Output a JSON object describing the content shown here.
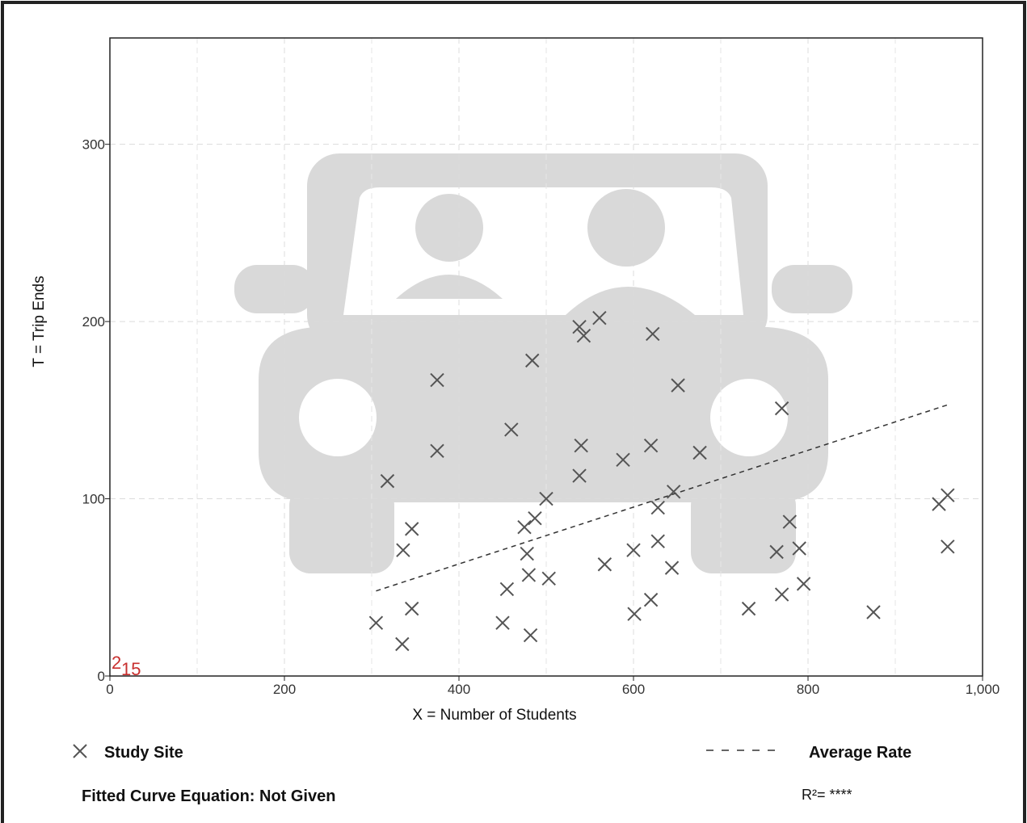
{
  "chart_data": {
    "type": "scatter",
    "xlabel": "X = Number of Students",
    "ylabel": "T = Trip Ends",
    "xlim": [
      0,
      1000
    ],
    "ylim": [
      0,
      360
    ],
    "x_ticks": [
      "0",
      "200",
      "400",
      "600",
      "800",
      "1,000"
    ],
    "y_ticks": [
      "0",
      "100",
      "200",
      "300"
    ],
    "grid": true,
    "series": [
      {
        "name": "Study Site",
        "marker": "x",
        "color": "#555555",
        "points": [
          [
            305,
            30
          ],
          [
            318,
            110
          ],
          [
            335,
            18
          ],
          [
            336,
            71
          ],
          [
            346,
            38
          ],
          [
            346,
            83
          ],
          [
            375,
            167
          ],
          [
            375,
            127
          ],
          [
            450,
            30
          ],
          [
            455,
            49
          ],
          [
            460,
            139
          ],
          [
            475,
            84
          ],
          [
            478,
            69
          ],
          [
            480,
            57
          ],
          [
            482,
            23
          ],
          [
            484,
            178
          ],
          [
            487,
            89
          ],
          [
            500,
            100
          ],
          [
            503,
            55
          ],
          [
            538,
            197
          ],
          [
            538,
            113
          ],
          [
            540,
            130
          ],
          [
            543,
            192
          ],
          [
            561,
            202
          ],
          [
            567,
            63
          ],
          [
            588,
            122
          ],
          [
            600,
            71
          ],
          [
            601,
            35
          ],
          [
            620,
            43
          ],
          [
            620,
            130
          ],
          [
            622,
            193
          ],
          [
            628,
            95
          ],
          [
            628,
            76
          ],
          [
            644,
            61
          ],
          [
            646,
            104
          ],
          [
            651,
            164
          ],
          [
            676,
            126
          ],
          [
            732,
            38
          ],
          [
            764,
            70
          ],
          [
            770,
            46
          ],
          [
            770,
            151
          ],
          [
            779,
            87
          ],
          [
            790,
            72
          ],
          [
            795,
            52
          ],
          [
            875,
            36
          ],
          [
            950,
            97
          ],
          [
            960,
            102
          ],
          [
            960,
            73
          ]
        ]
      },
      {
        "name": "Average Rate",
        "style": "dashed",
        "color": "#333333",
        "points": [
          [
            305,
            48
          ],
          [
            960,
            153
          ]
        ]
      }
    ]
  },
  "legend": {
    "study_site_label": "Study Site",
    "average_rate_label": "Average Rate"
  },
  "footer": {
    "equation": "Fitted Curve Equation: Not Given",
    "r_squared": "R²= ****"
  },
  "annotation": {
    "big": "2",
    "small": "15"
  },
  "watermark": "car-with-two-people-icon"
}
